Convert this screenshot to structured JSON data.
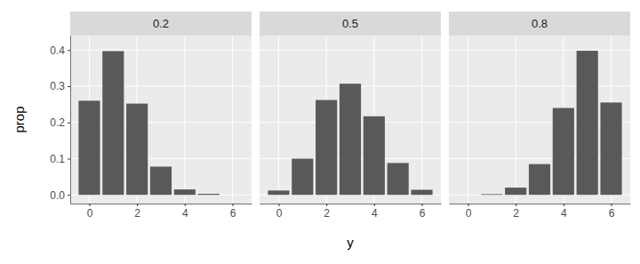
{
  "chart_data": {
    "type": "bar",
    "x_label": "y",
    "y_label": "prop",
    "color": "#595959",
    "grid": true,
    "xlim": [
      -0.8,
      6.8
    ],
    "xticks": [
      0,
      2,
      4,
      6
    ],
    "ylim": [
      -0.024,
      0.44
    ],
    "yticks": [
      {
        "value": 0,
        "label": "0.0"
      },
      0.1,
      0.2,
      0.3,
      0.4
    ],
    "facets": [
      {
        "title": "0.2",
        "x": [
          0,
          1,
          2,
          3,
          4,
          5,
          6
        ],
        "values": [
          0.26,
          0.397,
          0.252,
          0.078,
          0.015,
          0.003,
          0
        ]
      },
      {
        "title": "0.5",
        "x": [
          0,
          1,
          2,
          3,
          4,
          5,
          6
        ],
        "values": [
          0.012,
          0.1,
          0.262,
          0.307,
          0.217,
          0.088,
          0.014
        ]
      },
      {
        "title": "0.8",
        "x": [
          0,
          1,
          2,
          3,
          4,
          5,
          6
        ],
        "values": [
          0,
          0.002,
          0.02,
          0.085,
          0.24,
          0.398,
          0.255
        ]
      }
    ]
  }
}
